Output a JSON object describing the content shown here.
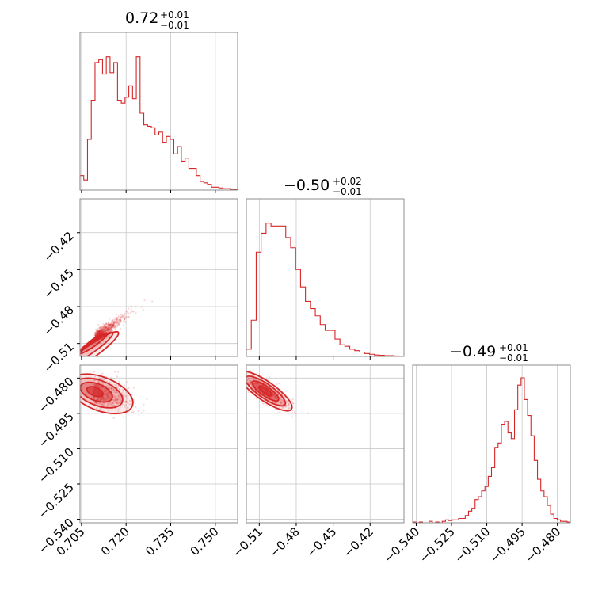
{
  "chart_data": {
    "type": "corner",
    "color": "#d62728",
    "grid": true,
    "params": [
      {
        "title_value": "0.72",
        "title_plus": "+0.01",
        "title_minus": "−0.01",
        "range": [
          0.7045,
          0.7575
        ],
        "ticks": [
          0.705,
          0.72,
          0.735,
          0.75
        ],
        "tick_labels": [
          "0.705",
          "0.720",
          "0.735",
          "0.750"
        ],
        "hist": [
          0.1,
          0.07,
          0.35,
          0.62,
          0.88,
          0.9,
          0.8,
          0.92,
          0.81,
          0.88,
          0.62,
          0.6,
          0.64,
          0.72,
          0.63,
          0.92,
          0.53,
          0.45,
          0.44,
          0.43,
          0.38,
          0.4,
          0.33,
          0.37,
          0.35,
          0.25,
          0.3,
          0.2,
          0.22,
          0.15,
          0.15,
          0.1,
          0.06,
          0.05,
          0.04,
          0.02,
          0.02,
          0.015,
          0.01,
          0.01,
          0.005,
          0.005
        ]
      },
      {
        "title_value": "−0.50",
        "title_plus": "+0.02",
        "title_minus": "−0.01",
        "range": [
          -0.5205,
          -0.3925
        ],
        "ticks": [
          -0.51,
          -0.48,
          -0.45,
          -0.42
        ],
        "tick_labels": [
          "−0.51",
          "−0.48",
          "−0.45",
          "−0.42"
        ],
        "hist": [
          0.05,
          0.25,
          0.72,
          0.85,
          0.92,
          0.9,
          0.9,
          0.9,
          0.82,
          0.75,
          0.6,
          0.48,
          0.38,
          0.33,
          0.28,
          0.22,
          0.18,
          0.18,
          0.12,
          0.08,
          0.07,
          0.05,
          0.04,
          0.03,
          0.02,
          0.015,
          0.01,
          0.008,
          0.005,
          0.005,
          0.003,
          0.002
        ]
      },
      {
        "title_value": "−0.49",
        "title_plus": "+0.01",
        "title_minus": "−0.01",
        "range": [
          -0.5415,
          -0.4745
        ],
        "ticks": [
          -0.54,
          -0.525,
          -0.51,
          -0.495,
          -0.48
        ],
        "tick_labels": [
          "−0.540",
          "−0.525",
          "−0.510",
          "−0.495",
          "−0.480"
        ],
        "hist": [
          0.005,
          0.0,
          0.005,
          0.0,
          0.0,
          0.01,
          0.0,
          0.005,
          0.0,
          0.01,
          0.02,
          0.015,
          0.02,
          0.02,
          0.03,
          0.03,
          0.05,
          0.08,
          0.1,
          0.16,
          0.18,
          0.22,
          0.25,
          0.32,
          0.38,
          0.52,
          0.55,
          0.68,
          0.7,
          0.62,
          0.58,
          0.78,
          0.95,
          1.0,
          0.85,
          0.74,
          0.6,
          0.43,
          0.3,
          0.22,
          0.18,
          0.12,
          0.06,
          0.03,
          0.02,
          0.01,
          0.01,
          0.005
        ]
      }
    ],
    "pairs": [
      {
        "x": 0,
        "y": 1,
        "mean": [
          0.7095,
          -0.505
        ],
        "scale": [
          0.004,
          0.007
        ],
        "rho": 0.93,
        "direction": "positive"
      },
      {
        "x": 0,
        "y": 2,
        "mean": [
          0.709,
          -0.4855
        ],
        "scale": [
          0.0045,
          0.0035
        ],
        "rho": -0.45,
        "direction": "negative"
      },
      {
        "x": 1,
        "y": 2,
        "mean": [
          -0.505,
          -0.4855
        ],
        "scale": [
          0.009,
          0.0035
        ],
        "rho": -0.82,
        "direction": "negative"
      }
    ]
  }
}
